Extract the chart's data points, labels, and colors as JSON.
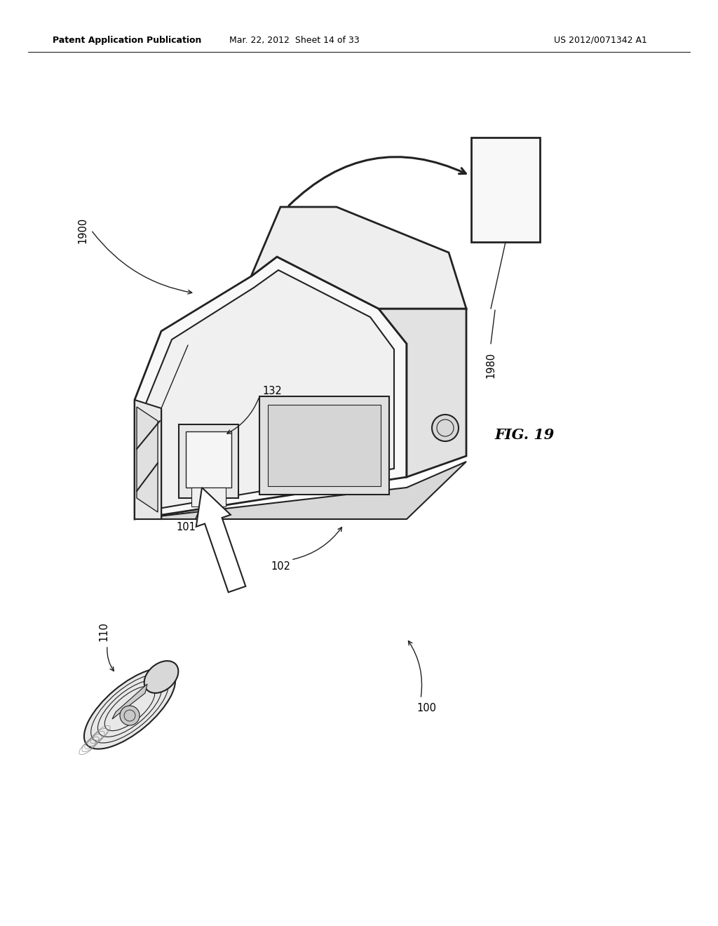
{
  "background_color": "#ffffff",
  "header_left": "Patent Application Publication",
  "header_mid": "Mar. 22, 2012  Sheet 14 of 33",
  "header_right": "US 2012/0071342 A1",
  "fig_label": "FIG. 19",
  "line_color": "#222222",
  "text_color": "#000000"
}
